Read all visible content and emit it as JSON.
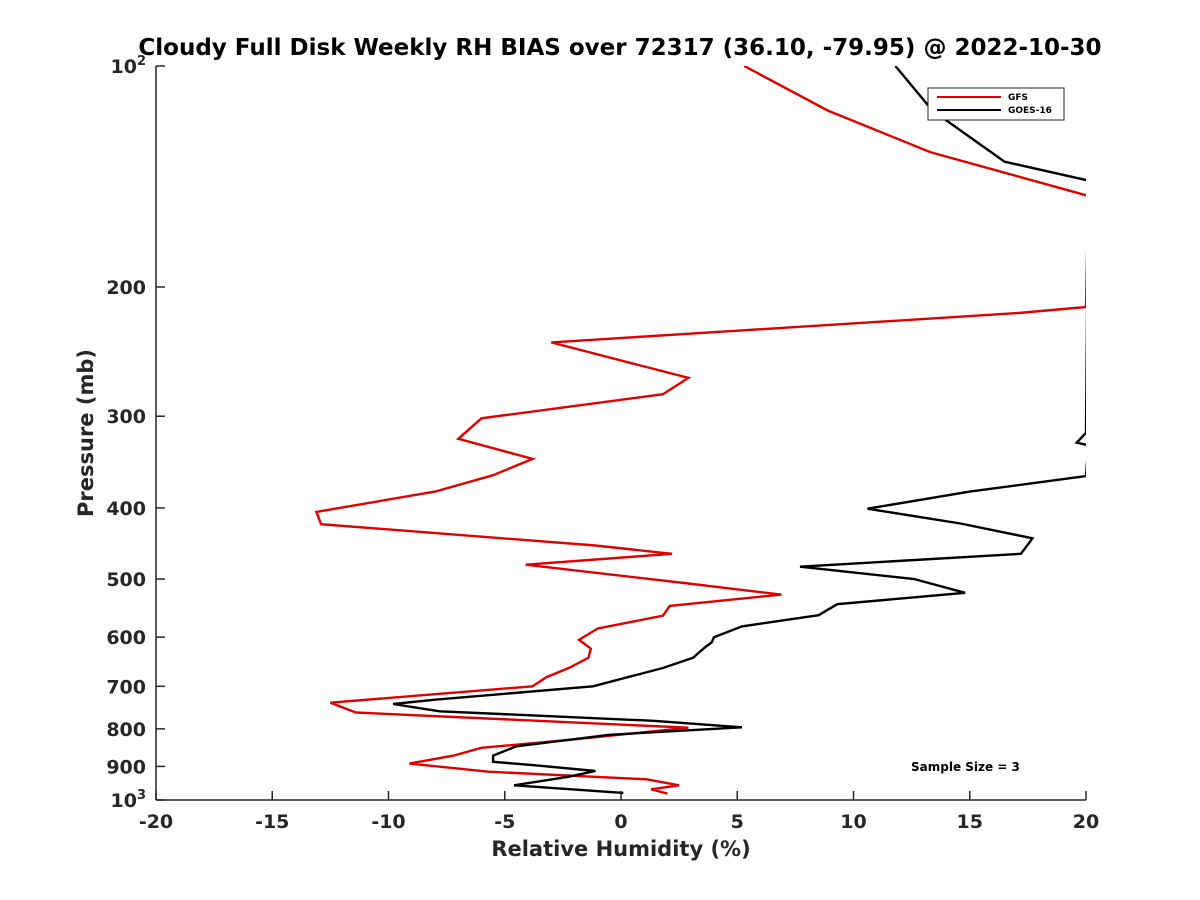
{
  "chart_data": {
    "type": "line",
    "title": "Cloudy Full Disk Weekly RH BIAS over 72317 (36.10, -79.95) @ 2022-10-30",
    "xlabel": "Relative Humidity (%)",
    "ylabel": "Pressure (mb)",
    "xlim": [
      -20,
      20
    ],
    "ylim": [
      100,
      1000
    ],
    "y_scale": "log",
    "y_direction": "reversed",
    "grid": false,
    "legend_position": "top-right",
    "x_ticks": [
      "-20",
      "-15",
      "-10",
      "-5",
      "0",
      "5",
      "10",
      "15",
      "20"
    ],
    "x_tick_values": [
      -20,
      -15,
      -10,
      -5,
      0,
      5,
      10,
      15,
      20
    ],
    "y_ticks": [
      {
        "value": 100,
        "base": "10",
        "exp": "2"
      },
      {
        "value": 200,
        "label": "200"
      },
      {
        "value": 300,
        "label": "300"
      },
      {
        "value": 400,
        "label": "400"
      },
      {
        "value": 500,
        "label": "500"
      },
      {
        "value": 600,
        "label": "600"
      },
      {
        "value": 700,
        "label": "700"
      },
      {
        "value": 800,
        "label": "800"
      },
      {
        "value": 900,
        "label": "900"
      },
      {
        "value": 1000,
        "base": "10",
        "exp": "3"
      }
    ],
    "series": [
      {
        "name": "GFS",
        "color": "#e00000",
        "points": [
          [
            5.3,
            100
          ],
          [
            8.9,
            115
          ],
          [
            13.3,
            131
          ],
          [
            20.0,
            150
          ],
          [
            20.1,
            150
          ],
          [
            20.0,
            213
          ],
          [
            17.1,
            217
          ],
          [
            -3.0,
            238
          ],
          [
            2.9,
            266
          ],
          [
            1.8,
            280
          ],
          [
            -6.0,
            302
          ],
          [
            -7.0,
            322
          ],
          [
            -3.8,
            343
          ],
          [
            -5.5,
            361
          ],
          [
            -8.0,
            380
          ],
          [
            -13.1,
            405
          ],
          [
            -12.9,
            421
          ],
          [
            -1.1,
            450
          ],
          [
            2.2,
            462
          ],
          [
            -4.1,
            478
          ],
          [
            2.9,
            507
          ],
          [
            6.9,
            525
          ],
          [
            2.1,
            544
          ],
          [
            1.8,
            561
          ],
          [
            -1.0,
            584
          ],
          [
            -1.8,
            605
          ],
          [
            -1.3,
            622
          ],
          [
            -1.4,
            640
          ],
          [
            -2.2,
            660
          ],
          [
            -3.2,
            680
          ],
          [
            -3.8,
            700
          ],
          [
            -12.5,
            737
          ],
          [
            -11.4,
            760
          ],
          [
            2.9,
            797
          ],
          [
            -2.2,
            828
          ],
          [
            -6.0,
            849
          ],
          [
            -7.2,
            870
          ],
          [
            -9.1,
            892
          ],
          [
            -5.7,
            915
          ],
          [
            1.1,
            937
          ],
          [
            2.5,
            955
          ],
          [
            1.3,
            967
          ],
          [
            2.0,
            980
          ]
        ]
      },
      {
        "name": "GOES-16",
        "color": "#000000",
        "points": [
          [
            11.8,
            100
          ],
          [
            13.4,
            115
          ],
          [
            16.5,
            135
          ],
          [
            20.0,
            143
          ],
          [
            20.1,
            143
          ],
          [
            20.0,
            316
          ],
          [
            19.6,
            326
          ],
          [
            20.0,
            328
          ],
          [
            20.1,
            328
          ],
          [
            20.0,
            362
          ],
          [
            15.0,
            380
          ],
          [
            10.6,
            401
          ],
          [
            14.6,
            420
          ],
          [
            17.7,
            440
          ],
          [
            17.2,
            462
          ],
          [
            7.7,
            481
          ],
          [
            12.6,
            500
          ],
          [
            14.8,
            522
          ],
          [
            9.3,
            541
          ],
          [
            8.5,
            560
          ],
          [
            5.2,
            580
          ],
          [
            4.0,
            600
          ],
          [
            3.9,
            610
          ],
          [
            3.6,
            620
          ],
          [
            3.1,
            640
          ],
          [
            1.8,
            661
          ],
          [
            -1.2,
            700
          ],
          [
            -8.0,
            730
          ],
          [
            -9.8,
            740
          ],
          [
            -7.8,
            757
          ],
          [
            1.4,
            780
          ],
          [
            5.2,
            796
          ],
          [
            -0.5,
            815
          ],
          [
            -4.5,
            845
          ],
          [
            -5.5,
            870
          ],
          [
            -5.5,
            887
          ],
          [
            -3.5,
            898
          ],
          [
            -1.1,
            913
          ],
          [
            -2.3,
            930
          ],
          [
            -4.6,
            955
          ],
          [
            0.1,
            978
          ]
        ]
      }
    ],
    "annotation": "Sample Size = 3"
  }
}
